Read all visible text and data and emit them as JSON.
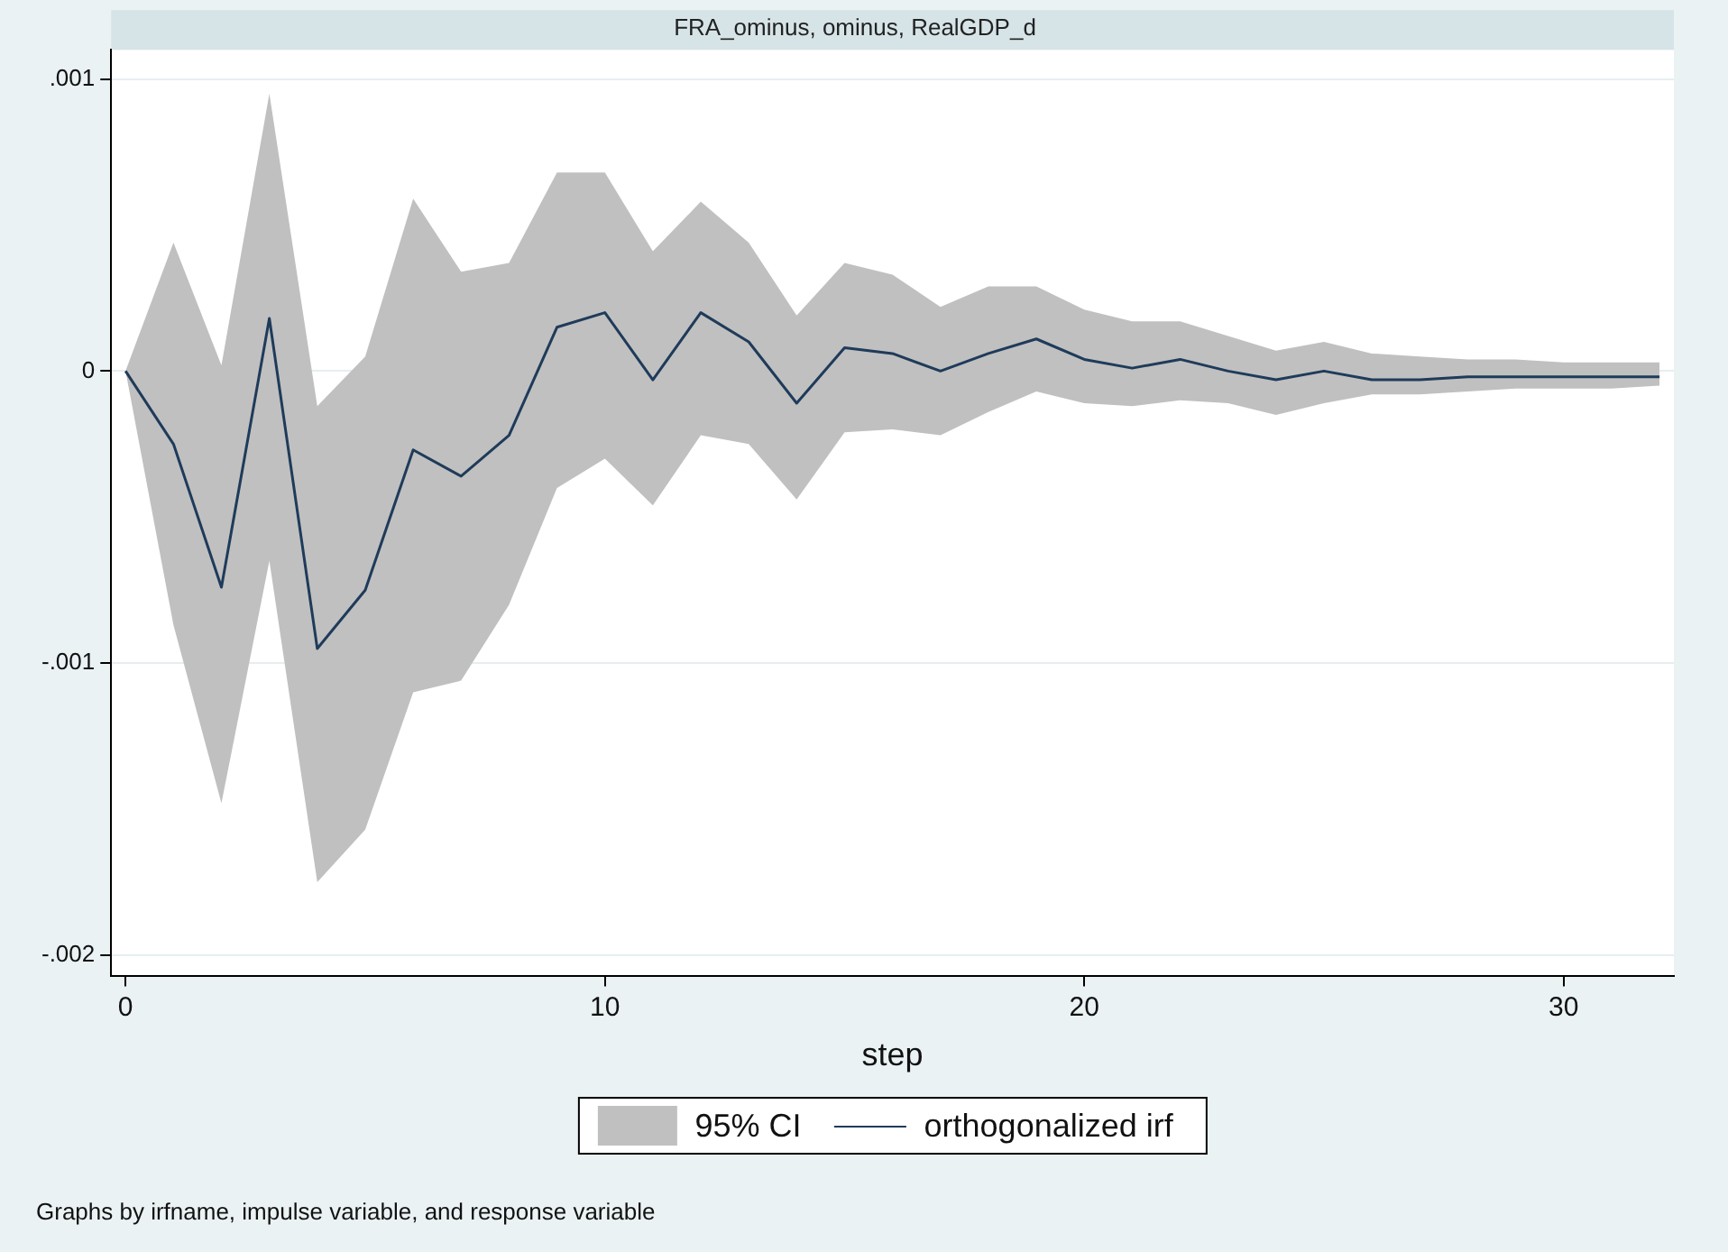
{
  "chart_data": {
    "type": "line",
    "title": "FRA_ominus, ominus, RealGDP_d",
    "xlabel": "step",
    "x": [
      0,
      1,
      2,
      3,
      4,
      5,
      6,
      7,
      8,
      9,
      10,
      11,
      12,
      13,
      14,
      15,
      16,
      17,
      18,
      19,
      20,
      21,
      22,
      23,
      24,
      25,
      26,
      27,
      28,
      29,
      30,
      31,
      32
    ],
    "series": [
      {
        "name": "orthogonalized irf",
        "type": "line",
        "color": "#1f3b5a",
        "values": [
          0,
          -0.00025,
          -0.00074,
          0.00018,
          -0.00095,
          -0.00075,
          -0.00027,
          -0.00036,
          -0.00022,
          0.00015,
          0.0002,
          -3e-05,
          0.0002,
          0.0001,
          -0.00011,
          8e-05,
          6e-05,
          0,
          6e-05,
          0.00011,
          4e-05,
          1e-05,
          4e-05,
          0,
          -3e-05,
          0,
          -3e-05,
          -3e-05,
          -2e-05,
          -2e-05,
          -2e-05,
          -2e-05,
          -2e-05
        ],
        "lower": [
          0,
          -0.00087,
          -0.00148,
          -0.00065,
          -0.00175,
          -0.00157,
          -0.0011,
          -0.00106,
          -0.0008,
          -0.0004,
          -0.0003,
          -0.00046,
          -0.00022,
          -0.00025,
          -0.00044,
          -0.00021,
          -0.0002,
          -0.00022,
          -0.00014,
          -7e-05,
          -0.00011,
          -0.00012,
          -0.0001,
          -0.00011,
          -0.00015,
          -0.00011,
          -8e-05,
          -8e-05,
          -7e-05,
          -6e-05,
          -6e-05,
          -6e-05,
          -5e-05
        ],
        "upper": [
          0,
          0.00044,
          2e-05,
          0.00095,
          -0.00012,
          5e-05,
          0.00059,
          0.00034,
          0.00037,
          0.00068,
          0.00068,
          0.00041,
          0.00058,
          0.00044,
          0.00019,
          0.00037,
          0.00033,
          0.00022,
          0.00029,
          0.00029,
          0.00021,
          0.00017,
          0.00017,
          0.00012,
          7e-05,
          0.0001,
          6e-05,
          5e-05,
          4e-05,
          4e-05,
          3e-05,
          3e-05,
          3e-05
        ]
      }
    ],
    "xlim": [
      -0.3,
      32.3
    ],
    "xticks": [
      0,
      10,
      20,
      30
    ],
    "ylim": [
      -0.00207,
      0.0011
    ],
    "yticks": [
      {
        "value": 0.001,
        "label": ".001"
      },
      0,
      {
        "value": -0.001,
        "label": "-.001"
      },
      {
        "value": -0.002,
        "label": "-.002"
      }
    ],
    "grid": "y",
    "legend": "bottom",
    "marker": "none",
    "line_style": "solid",
    "annotations": [
      "95% CI",
      "Graphs by irfname, impulse variable, and response variable"
    ]
  }
}
